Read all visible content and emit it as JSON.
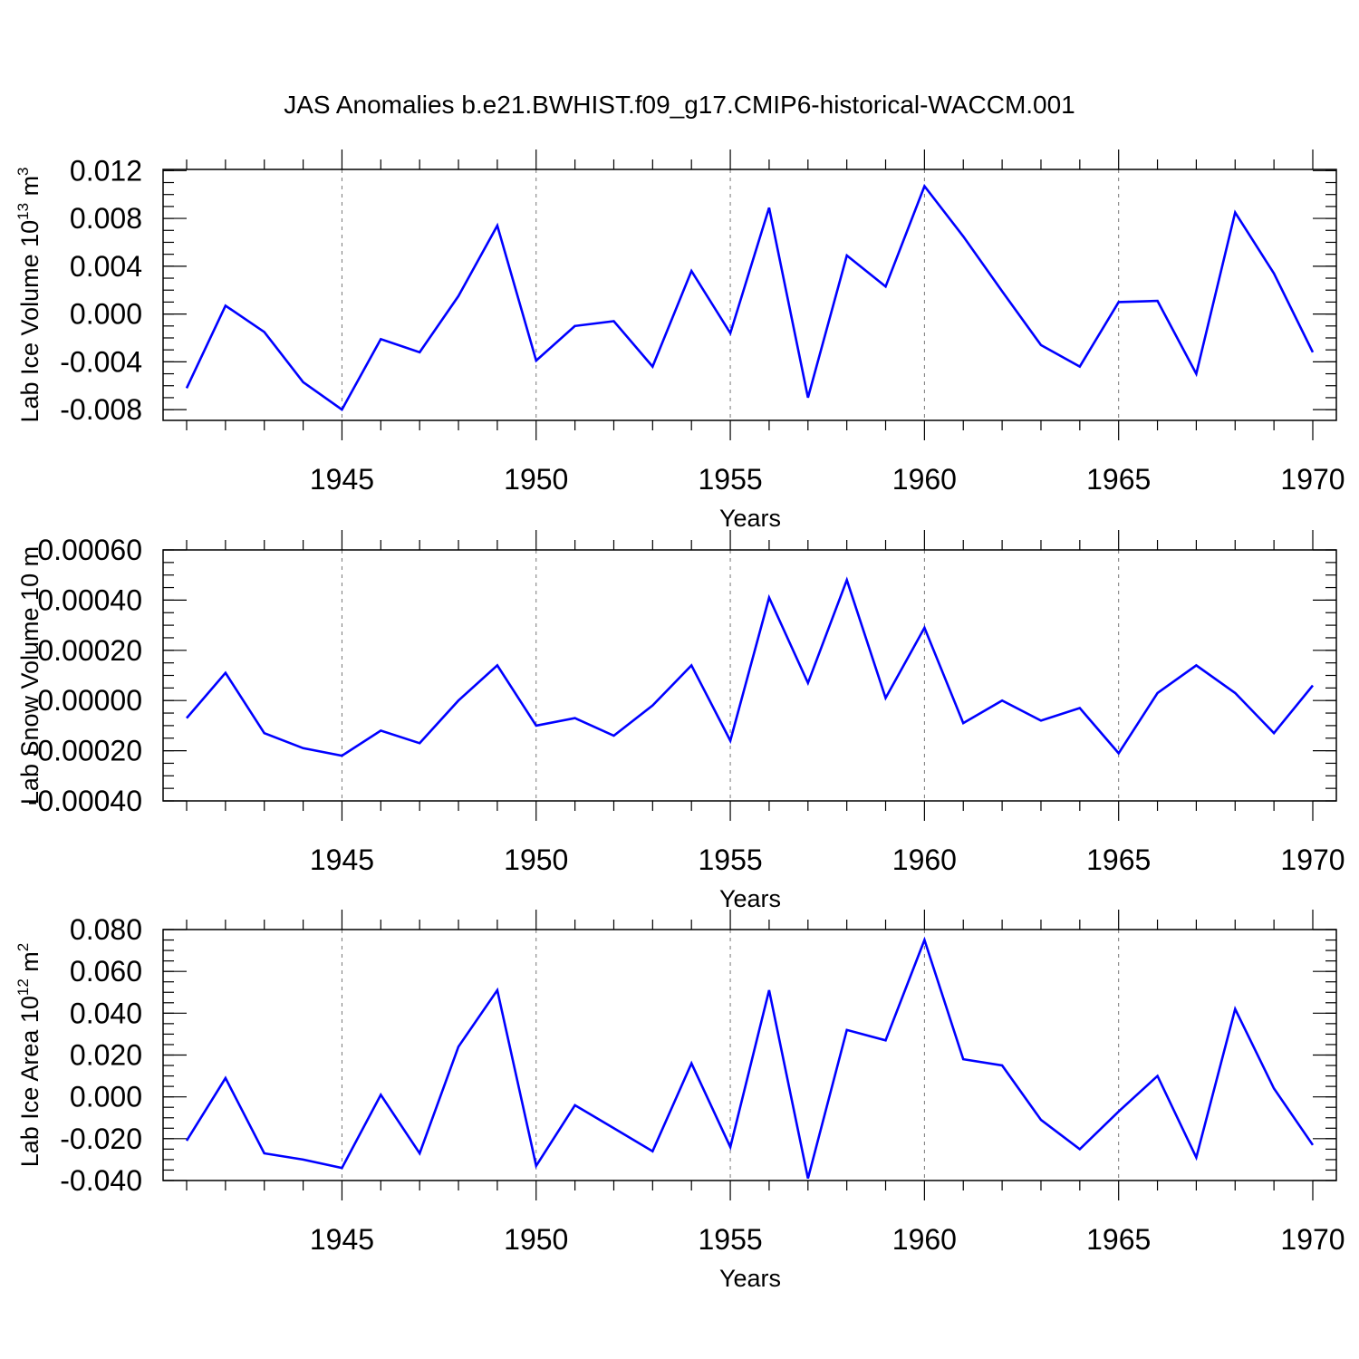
{
  "figure": {
    "title": "JAS Anomalies b.e21.BWHIST.f09_g17.CMIP6-historical-WACCM.001"
  },
  "colors": {
    "series": "#0000ff",
    "grid": "#777777"
  },
  "chart_data": [
    {
      "type": "line",
      "title": "JAS Anomalies b.e21.BWHIST.f09_g17.CMIP6-historical-WACCM.001",
      "xlabel": "Years",
      "ylabel": {
        "main": "Lab Ice Volume 10",
        "exp": "13",
        "unit": " m",
        "unit_exp": "3"
      },
      "x": [
        1941,
        1942,
        1943,
        1944,
        1945,
        1946,
        1947,
        1948,
        1949,
        1950,
        1951,
        1952,
        1953,
        1954,
        1955,
        1956,
        1957,
        1958,
        1959,
        1960,
        1961,
        1962,
        1963,
        1964,
        1965,
        1966,
        1967,
        1968,
        1969,
        1970
      ],
      "y": [
        -0.0062,
        0.0007,
        -0.0015,
        -0.0057,
        -0.008,
        -0.0021,
        -0.0032,
        0.0015,
        0.0074,
        -0.0039,
        -0.001,
        -0.0006,
        -0.0044,
        0.0036,
        -0.0016,
        0.0089,
        -0.007,
        0.0049,
        0.0023,
        0.0107,
        0.0065,
        0.0019,
        -0.0026,
        -0.0044,
        0.001,
        0.0011,
        -0.005,
        0.0085,
        0.0034,
        -0.0032
      ],
      "xlim": [
        1940.4,
        1970.6
      ],
      "ylim": [
        -0.0089,
        0.0121
      ],
      "yticks": [
        "0.012",
        "0.008",
        "0.004",
        "0.000",
        "-0.004",
        "-0.008"
      ],
      "ytick_values": [
        0.012,
        0.008,
        0.004,
        0.0,
        -0.004,
        -0.008
      ],
      "yminor_step": 0.001,
      "xticks": [
        "1945",
        "1950",
        "1955",
        "1960",
        "1965",
        "1970"
      ],
      "xtick_values": [
        1945,
        1950,
        1955,
        1960,
        1965,
        1970
      ],
      "grid": "vertical dashed at labeled years"
    },
    {
      "type": "line",
      "xlabel": "Years",
      "ylabel": {
        "main": "Lab Snow Volume 10",
        "exp": "",
        "unit": " m",
        "unit_exp": ""
      },
      "x": [
        1941,
        1942,
        1943,
        1944,
        1945,
        1946,
        1947,
        1948,
        1949,
        1950,
        1951,
        1952,
        1953,
        1954,
        1955,
        1956,
        1957,
        1958,
        1959,
        1960,
        1961,
        1962,
        1963,
        1964,
        1965,
        1966,
        1967,
        1968,
        1969,
        1970
      ],
      "y": [
        -7e-05,
        0.00011,
        -0.00013,
        -0.00019,
        -0.00022,
        -0.00012,
        -0.00017,
        0.0,
        0.00014,
        -0.0001,
        -7e-05,
        -0.00014,
        -2e-05,
        0.00014,
        -0.00016,
        0.00041,
        7e-05,
        0.00048,
        1e-05,
        0.00029,
        -9e-05,
        0.0,
        -8e-05,
        -3e-05,
        -0.00021,
        3e-05,
        0.00014,
        3e-05,
        -0.00013,
        6e-05
      ],
      "xlim": [
        1940.4,
        1970.6
      ],
      "ylim": [
        -0.0004,
        0.0006
      ],
      "yticks": [
        "0.00060",
        "0.00040",
        "0.00020",
        "0.00000",
        "-0.00020",
        "-0.00040"
      ],
      "ytick_values": [
        0.0006,
        0.0004,
        0.0002,
        0.0,
        -0.0002,
        -0.0004
      ],
      "yminor_step": 5e-05,
      "xticks": [
        "1945",
        "1950",
        "1955",
        "1960",
        "1965",
        "1970"
      ],
      "xtick_values": [
        1945,
        1950,
        1955,
        1960,
        1965,
        1970
      ],
      "grid": "vertical dashed at labeled years"
    },
    {
      "type": "line",
      "xlabel": "Years",
      "ylabel": {
        "main": "Lab Ice Area 10",
        "exp": "12",
        "unit": " m",
        "unit_exp": "2"
      },
      "x": [
        1941,
        1942,
        1943,
        1944,
        1945,
        1946,
        1947,
        1948,
        1949,
        1950,
        1951,
        1952,
        1953,
        1954,
        1955,
        1956,
        1957,
        1958,
        1959,
        1960,
        1961,
        1962,
        1963,
        1964,
        1965,
        1966,
        1967,
        1968,
        1969,
        1970
      ],
      "y": [
        -0.021,
        0.009,
        -0.027,
        -0.03,
        -0.034,
        0.001,
        -0.027,
        0.024,
        0.051,
        -0.033,
        -0.004,
        -0.015,
        -0.026,
        0.016,
        -0.024,
        0.051,
        -0.039,
        0.032,
        0.027,
        0.075,
        0.018,
        0.015,
        -0.011,
        -0.025,
        -0.007,
        0.01,
        -0.029,
        0.042,
        0.004,
        -0.023
      ],
      "xlim": [
        1940.4,
        1970.6
      ],
      "ylim": [
        -0.04,
        0.08
      ],
      "yticks": [
        "0.080",
        "0.060",
        "0.040",
        "0.020",
        "0.000",
        "-0.020",
        "-0.040"
      ],
      "ytick_values": [
        0.08,
        0.06,
        0.04,
        0.02,
        0.0,
        -0.02,
        -0.04
      ],
      "yminor_step": 0.005,
      "xticks": [
        "1945",
        "1950",
        "1955",
        "1960",
        "1965",
        "1970"
      ],
      "xtick_values": [
        1945,
        1950,
        1955,
        1960,
        1965,
        1970
      ],
      "grid": "vertical dashed at labeled years"
    }
  ]
}
